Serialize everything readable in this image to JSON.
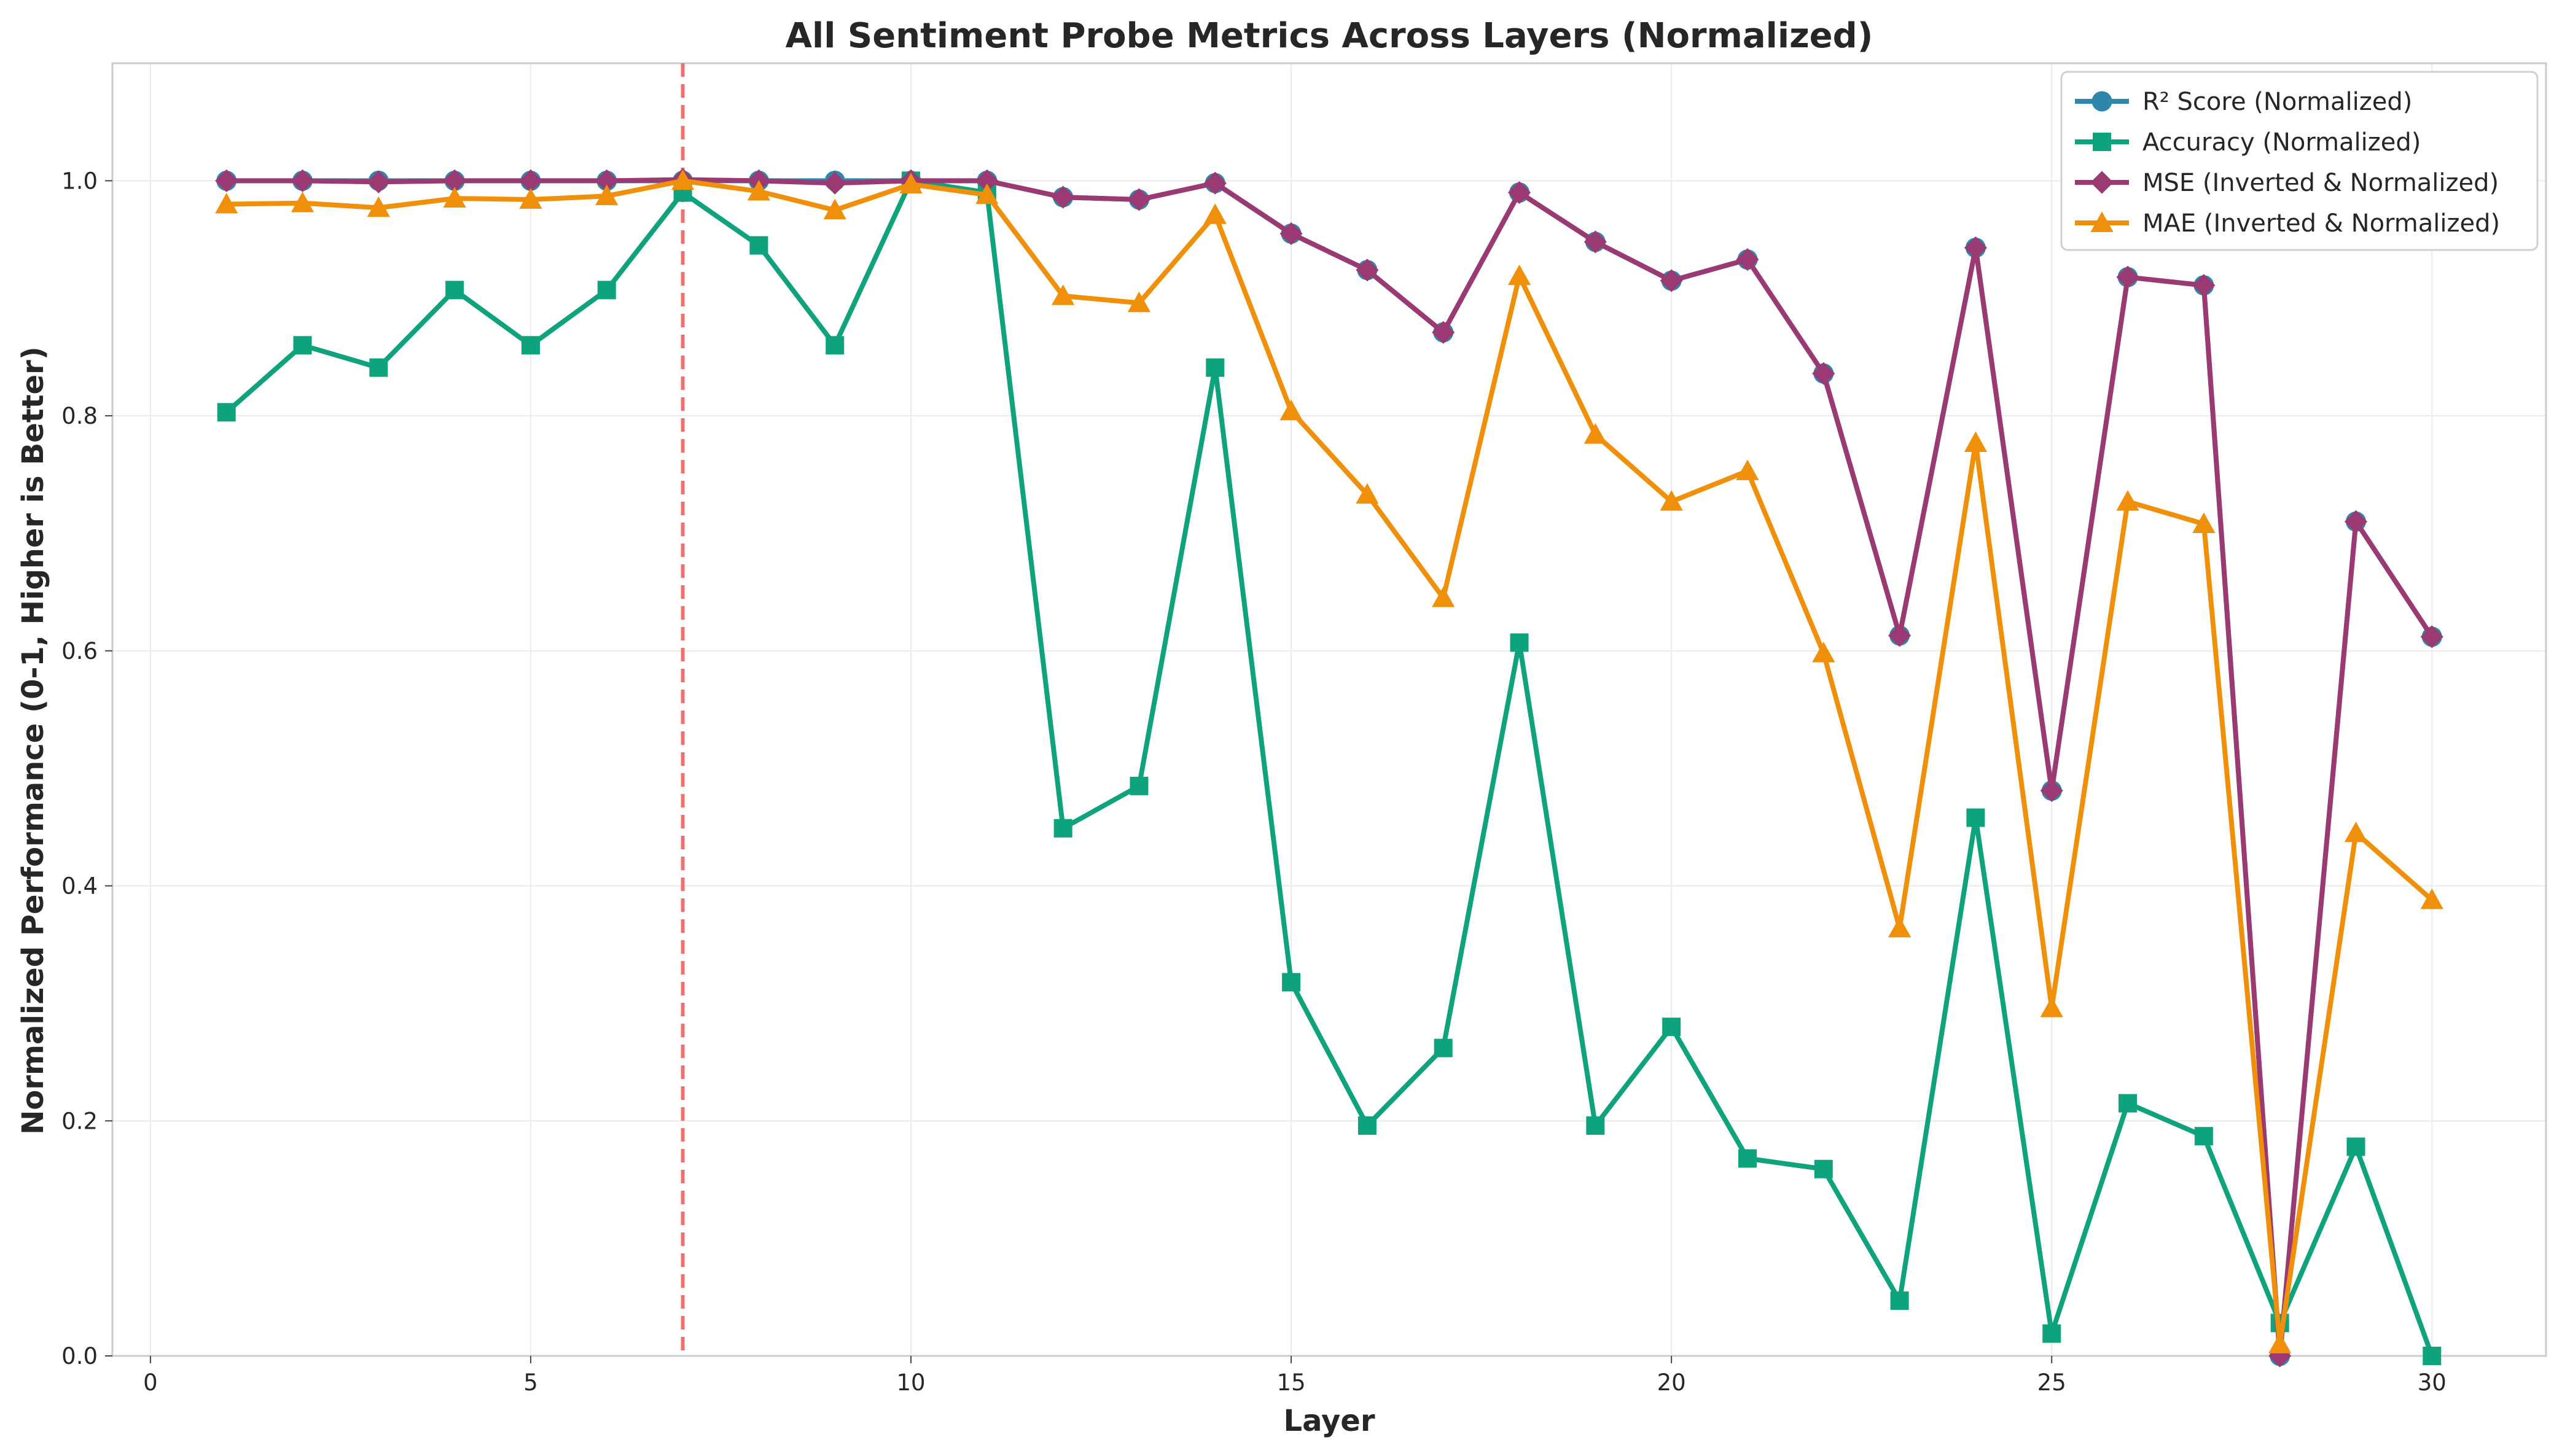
{
  "chart_data": {
    "type": "line",
    "title": "All Sentiment Probe Metrics Across Layers (Normalized)",
    "xlabel": "Layer",
    "ylabel": "Normalized Performance (0-1, Higher is Better)",
    "xlim": [
      -0.5,
      31.5
    ],
    "ylim": [
      0,
      1.1
    ],
    "xticks": [
      0,
      5,
      10,
      15,
      20,
      25,
      30
    ],
    "xtick_labels": [
      "0",
      "5",
      "10",
      "15",
      "20",
      "25",
      "30"
    ],
    "yticks": [
      0,
      0.2,
      0.4,
      0.6,
      0.8,
      1.0
    ],
    "ytick_labels": [
      "0.0",
      "0.2",
      "0.4",
      "0.6",
      "0.8",
      "1.0"
    ],
    "grid": true,
    "legend_position": "top-right",
    "reference_line": {
      "x": 7,
      "color": "#f07070",
      "style": "dashed"
    },
    "x": [
      1,
      2,
      3,
      4,
      5,
      6,
      7,
      8,
      9,
      10,
      11,
      12,
      13,
      14,
      15,
      16,
      17,
      18,
      19,
      20,
      21,
      22,
      23,
      24,
      25,
      26,
      27,
      28,
      29,
      30
    ],
    "series": [
      {
        "name": "R² Score (Normalized)",
        "color": "#2e86ab",
        "marker": "circle",
        "values": [
          1.0,
          1.0,
          1.0,
          1.0,
          1.0,
          1.0,
          1.0,
          1.0,
          1.0,
          1.0,
          1.0,
          0.986,
          0.984,
          0.998,
          0.955,
          0.924,
          0.871,
          0.99,
          0.948,
          0.915,
          0.933,
          0.836,
          0.613,
          0.943,
          0.481,
          0.918,
          0.911,
          0.0,
          0.71,
          0.612
        ]
      },
      {
        "name": "Accuracy (Normalized)",
        "color": "#0ea37c",
        "marker": "square",
        "values": [
          0.803,
          0.86,
          0.841,
          0.907,
          0.86,
          0.907,
          0.99,
          0.945,
          0.86,
          1.0,
          0.99,
          0.449,
          0.485,
          0.841,
          0.318,
          0.196,
          0.262,
          0.607,
          0.196,
          0.28,
          0.168,
          0.159,
          0.047,
          0.458,
          0.019,
          0.215,
          0.187,
          0.028,
          0.178,
          0.0
        ]
      },
      {
        "name": "MSE (Inverted & Normalized)",
        "color": "#9b3a72",
        "marker": "diamond",
        "values": [
          1.0,
          1.0,
          0.999,
          1.0,
          1.0,
          1.0,
          1.001,
          1.0,
          0.998,
          1.0,
          1.0,
          0.986,
          0.984,
          0.998,
          0.955,
          0.924,
          0.871,
          0.99,
          0.948,
          0.915,
          0.933,
          0.836,
          0.613,
          0.943,
          0.481,
          0.918,
          0.911,
          0.0,
          0.71,
          0.612
        ]
      },
      {
        "name": "MAE (Inverted & Normalized)",
        "color": "#f0900a",
        "marker": "triangle",
        "values": [
          0.98,
          0.981,
          0.977,
          0.985,
          0.984,
          0.987,
          1.0,
          0.991,
          0.975,
          0.997,
          0.988,
          0.902,
          0.896,
          0.971,
          0.804,
          0.733,
          0.645,
          0.919,
          0.784,
          0.727,
          0.753,
          0.598,
          0.364,
          0.777,
          0.296,
          0.727,
          0.708,
          0.01,
          0.445,
          0.388
        ]
      }
    ]
  }
}
